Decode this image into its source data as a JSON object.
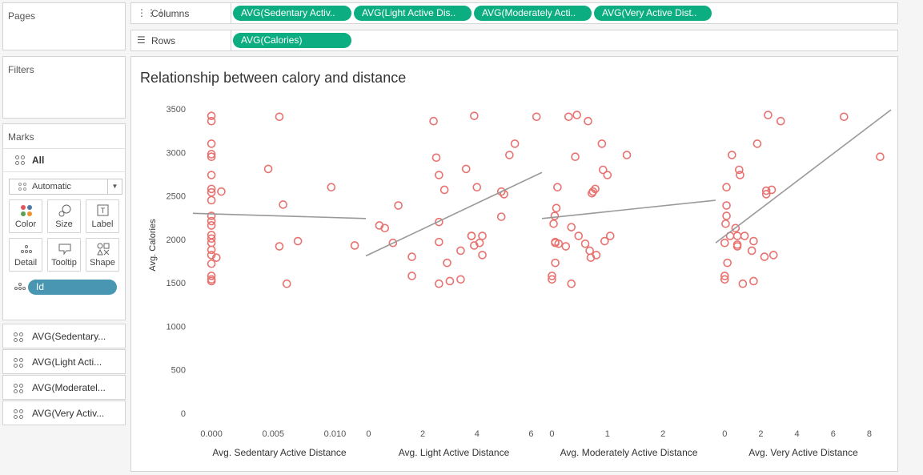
{
  "sidebar": {
    "pages_title": "Pages",
    "filters_title": "Filters",
    "marks_title": "Marks",
    "all_label": "All",
    "mark_type": "Automatic",
    "buttons": {
      "color": "Color",
      "size": "Size",
      "label": "Label",
      "detail": "Detail",
      "tooltip": "Tooltip",
      "shape": "Shape"
    },
    "detail_pill": "Id",
    "measures": [
      "AVG(Sedentary...",
      "AVG(Light Acti...",
      "AVG(Moderatel...",
      "AVG(Very Activ..."
    ]
  },
  "shelves": {
    "columns_label": "Columns",
    "columns_pills": [
      "AVG(Sedentary Activ..",
      "AVG(Light Active Dis..",
      "AVG(Moderately Acti..",
      "AVG(Very Active Dist.."
    ],
    "rows_label": "Rows",
    "rows_pills": [
      "AVG(Calories)"
    ]
  },
  "colors": {
    "pill_green": "#0cad81",
    "pill_blue": "#4996b2",
    "mark": "#e8726f",
    "trend": "#999999"
  },
  "chart_data": {
    "type": "scatter",
    "title": "Relationship between calory and distance",
    "ylabel": "Avg. Calories",
    "ylim": [
      0,
      3500
    ],
    "yticks": [
      0,
      500,
      1000,
      1500,
      2000,
      2500,
      3000,
      3500
    ],
    "panels": [
      {
        "xlabel": "Avg. Sedentary Active Distance",
        "xlim": [
          -0.0015,
          0.0125
        ],
        "xticks": [
          0,
          0.005,
          0.01
        ],
        "xtick_labels": [
          "0.000",
          "0.005",
          "0.010"
        ],
        "trend": [
          [
            -0.0015,
            2300
          ],
          [
            0.0125,
            2240
          ]
        ],
        "points": [
          [
            0,
            3420
          ],
          [
            0,
            3360
          ],
          [
            0,
            3100
          ],
          [
            0,
            2980
          ],
          [
            0,
            2950
          ],
          [
            0,
            2740
          ],
          [
            0,
            2580
          ],
          [
            0,
            2540
          ],
          [
            0,
            2450
          ],
          [
            0,
            2270
          ],
          [
            0,
            2210
          ],
          [
            0,
            2160
          ],
          [
            0,
            2050
          ],
          [
            0,
            2010
          ],
          [
            0,
            1960
          ],
          [
            0,
            1880
          ],
          [
            0,
            1820
          ],
          [
            0,
            1720
          ],
          [
            0,
            1580
          ],
          [
            0,
            1540
          ],
          [
            0,
            1520
          ],
          [
            0.0004,
            1790
          ],
          [
            0.0008,
            2550
          ],
          [
            0.0046,
            2810
          ],
          [
            0.0055,
            3410
          ],
          [
            0.0058,
            2400
          ],
          [
            0.0055,
            1920
          ],
          [
            0.0061,
            1490
          ],
          [
            0.007,
            1980
          ],
          [
            0.0097,
            2600
          ],
          [
            0.0116,
            1930
          ]
        ]
      },
      {
        "xlabel": "Avg. Light Active Distance",
        "xlim": [
          -0.1,
          6.4
        ],
        "xticks": [
          0,
          2,
          4,
          6
        ],
        "xtick_labels": [
          "0",
          "2",
          "4",
          "6"
        ],
        "trend": [
          [
            -0.1,
            1810
          ],
          [
            6.4,
            2770
          ]
        ],
        "points": [
          [
            0.4,
            2160
          ],
          [
            0.6,
            2130
          ],
          [
            0.9,
            1960
          ],
          [
            1.1,
            2390
          ],
          [
            1.6,
            1580
          ],
          [
            1.6,
            1800
          ],
          [
            2.4,
            3360
          ],
          [
            2.5,
            2940
          ],
          [
            2.6,
            2740
          ],
          [
            2.6,
            2200
          ],
          [
            2.6,
            1970
          ],
          [
            2.6,
            1490
          ],
          [
            2.8,
            2570
          ],
          [
            2.9,
            1730
          ],
          [
            3.0,
            1520
          ],
          [
            3.4,
            1540
          ],
          [
            3.4,
            1870
          ],
          [
            3.6,
            2810
          ],
          [
            3.8,
            2040
          ],
          [
            3.8,
            2040
          ],
          [
            3.9,
            3420
          ],
          [
            3.9,
            1930
          ],
          [
            4.0,
            2600
          ],
          [
            4.1,
            1960
          ],
          [
            4.2,
            2040
          ],
          [
            4.2,
            1820
          ],
          [
            4.9,
            2550
          ],
          [
            5.0,
            2520
          ],
          [
            4.9,
            2260
          ],
          [
            5.2,
            2970
          ],
          [
            5.4,
            3100
          ],
          [
            6.2,
            3410
          ]
        ]
      },
      {
        "xlabel": "Avg. Moderately Active Distance",
        "xlim": [
          -0.18,
          2.95
        ],
        "xticks": [
          0,
          1,
          2
        ],
        "xtick_labels": [
          "0",
          "1",
          "2"
        ],
        "trend": [
          [
            -0.18,
            2240
          ],
          [
            2.95,
            2450
          ]
        ],
        "points": [
          [
            0,
            1540
          ],
          [
            0,
            1580
          ],
          [
            0.03,
            2180
          ],
          [
            0.05,
            2270
          ],
          [
            0.06,
            1970
          ],
          [
            0.06,
            1960
          ],
          [
            0.06,
            1730
          ],
          [
            0.08,
            2360
          ],
          [
            0.1,
            2600
          ],
          [
            0.12,
            1950
          ],
          [
            0.25,
            1920
          ],
          [
            0.3,
            3410
          ],
          [
            0.35,
            2140
          ],
          [
            0.35,
            1490
          ],
          [
            0.42,
            2950
          ],
          [
            0.45,
            3430
          ],
          [
            0.48,
            2040
          ],
          [
            0.6,
            1950
          ],
          [
            0.65,
            3360
          ],
          [
            0.68,
            1870
          ],
          [
            0.7,
            1790
          ],
          [
            0.72,
            2530
          ],
          [
            0.74,
            2550
          ],
          [
            0.78,
            2580
          ],
          [
            0.8,
            1820
          ],
          [
            0.9,
            3100
          ],
          [
            0.92,
            2800
          ],
          [
            0.95,
            1980
          ],
          [
            1.0,
            2740
          ],
          [
            1.05,
            2040
          ],
          [
            1.35,
            2970
          ]
        ]
      },
      {
        "xlabel": "Avg. Very Active Distance",
        "xlim": [
          -0.5,
          9.2
        ],
        "xticks": [
          0,
          2,
          4,
          6,
          8
        ],
        "xtick_labels": [
          "0",
          "2",
          "4",
          "6",
          "8"
        ],
        "trend": [
          [
            -0.5,
            1960
          ],
          [
            9.2,
            3490
          ]
        ],
        "points": [
          [
            0,
            1540
          ],
          [
            0,
            1580
          ],
          [
            0,
            1960
          ],
          [
            0.05,
            2180
          ],
          [
            0.1,
            2270
          ],
          [
            0.1,
            2390
          ],
          [
            0.1,
            2600
          ],
          [
            0.15,
            1730
          ],
          [
            0.3,
            2040
          ],
          [
            0.4,
            2970
          ],
          [
            0.6,
            2130
          ],
          [
            0.7,
            2040
          ],
          [
            0.7,
            1920
          ],
          [
            0.7,
            1940
          ],
          [
            0.8,
            2800
          ],
          [
            0.85,
            2740
          ],
          [
            1.0,
            1490
          ],
          [
            1.1,
            2040
          ],
          [
            1.5,
            1870
          ],
          [
            1.6,
            1980
          ],
          [
            1.6,
            1520
          ],
          [
            1.8,
            3100
          ],
          [
            2.2,
            1800
          ],
          [
            2.3,
            2520
          ],
          [
            2.3,
            2560
          ],
          [
            2.4,
            3430
          ],
          [
            2.6,
            2570
          ],
          [
            2.7,
            1820
          ],
          [
            3.1,
            3360
          ],
          [
            6.6,
            3410
          ],
          [
            8.6,
            2950
          ]
        ]
      }
    ]
  }
}
